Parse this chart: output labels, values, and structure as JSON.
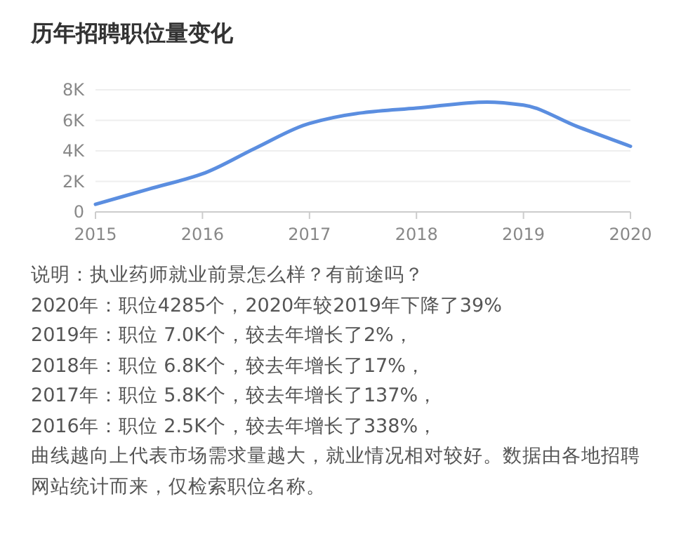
{
  "chart_data": {
    "type": "line",
    "title": "历年招聘职位量变化",
    "x": [
      2015,
      2015.5,
      2016,
      2016.5,
      2017,
      2017.5,
      2018,
      2018.66,
      2019,
      2019.5,
      2020
    ],
    "series": [
      {
        "color": "#5b8ee0",
        "values": [
          500,
          1500,
          2500,
          4200,
          5800,
          6500,
          6800,
          7200,
          7000,
          5600,
          4300
        ]
      }
    ],
    "xlim": [
      2015,
      2020
    ],
    "xticks": [
      2015,
      2016,
      2017,
      2018,
      2019,
      2020
    ],
    "ylim": [
      0,
      8000
    ],
    "yticks": [
      0,
      {
        "value": 2000,
        "label": "2K"
      },
      {
        "value": 4000,
        "label": "4K"
      },
      {
        "value": 6000,
        "label": "6K"
      },
      {
        "value": 8000,
        "label": "8K"
      }
    ],
    "grid": "y",
    "marker": "none",
    "line_style": "solid",
    "annotations": [
      "说明：执业药师就业前景怎么样？有前途吗？",
      "2020年：职位4285个，2020年较2019年下降了39%",
      "2019年：职位 7.0K个，较去年增长了2%，",
      "2018年：职位 6.8K个，较去年增长了17%，",
      "2017年：职位 5.8K个，较去年增长了137%，",
      "2016年：职位 2.5K个，较去年增长了338%，",
      "曲线越向上代表市场需求量越大，就业情况相对较好。数据由各地招聘网站统计而来，仅检索职位名称。"
    ]
  }
}
